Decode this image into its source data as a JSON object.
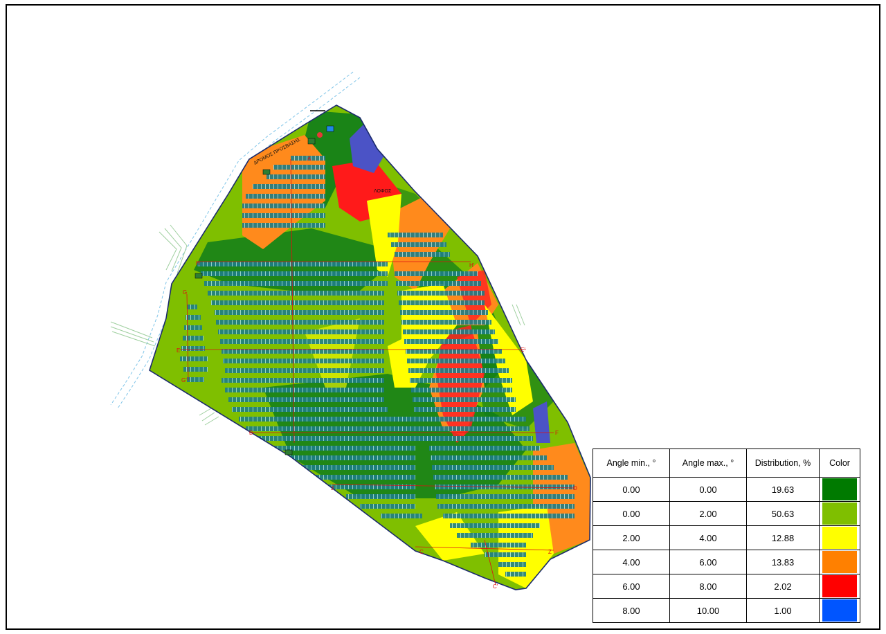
{
  "map": {
    "road_label": "ΔΡΟΜΟΣ ΠΡΟΣΒΑΣΗΣ",
    "hill_label": "ΛΟΦΟΣ",
    "section_labels": [
      "A",
      "H",
      "H'",
      "G",
      "G'",
      "E",
      "E'",
      "B",
      "F",
      "Z",
      "C",
      "C'",
      "D",
      "J"
    ]
  },
  "legend": {
    "headers": [
      "Angle min., °",
      "Angle max., °",
      "Distribution, %",
      "Color"
    ],
    "rows": [
      {
        "min": "0.00",
        "max": "0.00",
        "dist": "19.63",
        "color": "#007a00"
      },
      {
        "min": "0.00",
        "max": "2.00",
        "dist": "50.63",
        "color": "#7fbf00"
      },
      {
        "min": "2.00",
        "max": "4.00",
        "dist": "12.88",
        "color": "#ffff00"
      },
      {
        "min": "4.00",
        "max": "6.00",
        "dist": "13.83",
        "color": "#ff8000"
      },
      {
        "min": "6.00",
        "max": "8.00",
        "dist": "2.02",
        "color": "#ff0000"
      },
      {
        "min": "8.00",
        "max": "10.00",
        "dist": "1.00",
        "color": "#0055ff"
      }
    ]
  }
}
